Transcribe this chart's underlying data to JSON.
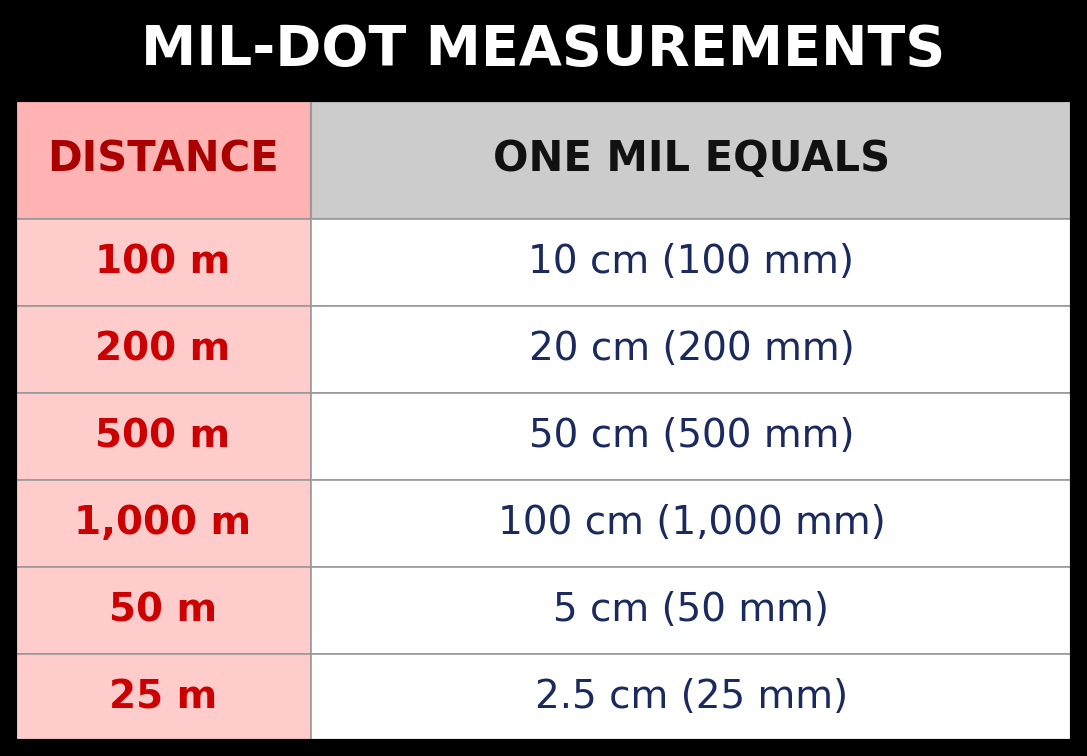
{
  "title": "MIL-DOT MEASUREMENTS",
  "title_bg": "#000000",
  "title_color": "#ffffff",
  "title_fontsize": 40,
  "col1_header": "DISTANCE",
  "col2_header": "ONE MIL EQUALS",
  "header_row_bg1": "#ffb3b3",
  "header_row_bg2": "#cccccc",
  "header_color1": "#aa0000",
  "header_color2": "#111111",
  "header_fontsize": 30,
  "rows": [
    [
      "100 m",
      "10 cm (100 mm)"
    ],
    [
      "200 m",
      "20 cm (200 mm)"
    ],
    [
      "500 m",
      "50 cm (500 mm)"
    ],
    [
      "1,000 m",
      "100 cm (1,000 mm)"
    ],
    [
      "50 m",
      "5 cm (50 mm)"
    ],
    [
      "25 m",
      "2.5 cm (25 mm)"
    ]
  ],
  "row_bg1": "#ffcccc",
  "row_bg2": "#ffffff",
  "row_color1": "#cc0000",
  "row_color2": "#1a2a5e",
  "row_fontsize": 28,
  "border_color": "#999999",
  "outer_border_color": "#000000",
  "fig_bg": "#000000",
  "col_split": 0.28
}
